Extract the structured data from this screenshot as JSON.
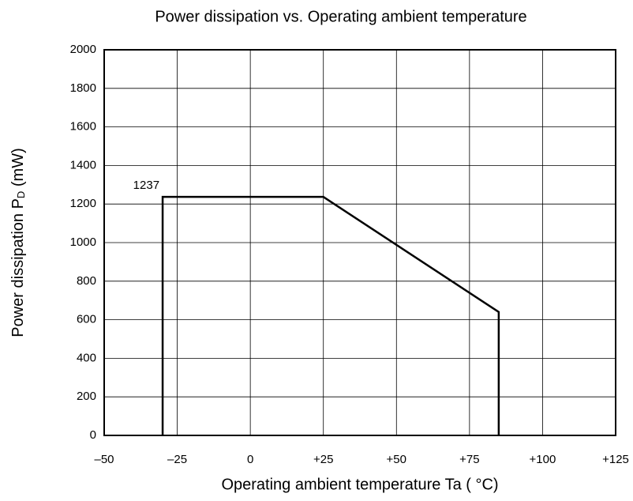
{
  "chart_data": {
    "type": "line",
    "title": "Power dissipation vs. Operating ambient temperature",
    "xlabel": "Operating ambient temperature Ta ( °C)",
    "ylabel_parts": [
      "Power dissipation P",
      "D",
      " (mW)"
    ],
    "x": [
      -30,
      -30,
      25,
      85,
      85
    ],
    "series": [
      {
        "color": "#000000",
        "values": [
          0,
          1237,
          1237,
          640,
          0
        ],
        "value_labels": [
          null,
          "1237",
          null,
          null,
          null
        ]
      }
    ],
    "xlim": [
      -50,
      125
    ],
    "xticks": [
      {
        "value": -50,
        "label": "–50"
      },
      {
        "value": -25,
        "label": "–25"
      },
      0,
      {
        "value": 25,
        "label": "+25"
      },
      {
        "value": 50,
        "label": "+50"
      },
      {
        "value": 75,
        "label": "+75"
      },
      {
        "value": 100,
        "label": "+100"
      },
      {
        "value": 125,
        "label": "+125"
      }
    ],
    "ylim": [
      0,
      2000
    ],
    "yticks": [
      0,
      200,
      400,
      600,
      800,
      1000,
      1200,
      1400,
      1600,
      1800,
      2000
    ],
    "grid": true
  }
}
